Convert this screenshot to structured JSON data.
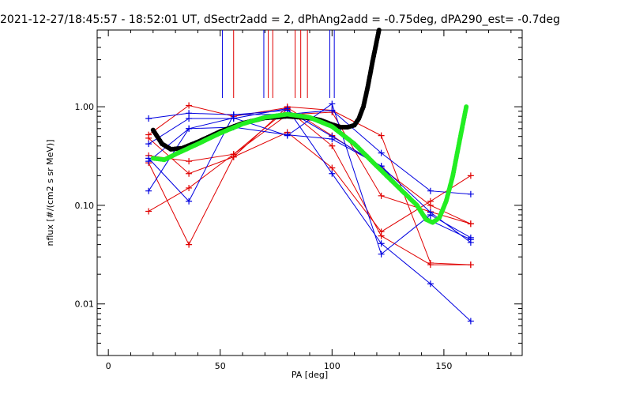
{
  "chart_data": {
    "type": "scatter",
    "title": "2021-12-27/18:45:57 - 18:52:01 UT, dSectr2add = 2, dPhAng2add = -0.75deg, dPA290_est=  -0.7deg",
    "xlabel": "PA [deg]",
    "ylabel": "nflux [#/(cm2 s sr MeV)]",
    "xlim": [
      -5,
      185
    ],
    "ylim": [
      0.003,
      6
    ],
    "yscale": "log",
    "x_ticks": [
      0,
      50,
      100,
      150
    ],
    "x_tick_labels": [
      "0",
      "50",
      "100",
      "150"
    ],
    "y_ticks": [
      0.01,
      0.1,
      1.0
    ],
    "y_tick_labels": [
      "0.01",
      "0.10",
      "1.00"
    ],
    "grid": false,
    "colors": {
      "red": "#e00000",
      "blue": "#0000e0",
      "black": "#000000",
      "green": "#22ee22"
    },
    "vertical_markers": [
      {
        "x": 51,
        "color": "#0000e0"
      },
      {
        "x": 56,
        "color": "#e00000"
      },
      {
        "x": 69.5,
        "color": "#0000e0"
      },
      {
        "x": 71.5,
        "color": "#e00000"
      },
      {
        "x": 73.5,
        "color": "#e00000"
      },
      {
        "x": 83.5,
        "color": "#e00000"
      },
      {
        "x": 86,
        "color": "#e00000"
      },
      {
        "x": 89,
        "color": "#e00000"
      },
      {
        "x": 99,
        "color": "#0000e0"
      },
      {
        "x": 101,
        "color": "#0000e0"
      }
    ],
    "series": [
      {
        "color": "#e00000",
        "x": [
          18,
          36,
          56,
          80,
          100,
          122,
          144,
          162
        ],
        "y": [
          0.087,
          0.15,
          0.33,
          0.83,
          0.88,
          0.125,
          0.086,
          0.065
        ]
      },
      {
        "color": "#e00000",
        "x": [
          18,
          36,
          56,
          80,
          100,
          122,
          144,
          162
        ],
        "y": [
          0.48,
          0.21,
          0.31,
          0.55,
          0.24,
          0.054,
          0.11,
          0.2
        ]
      },
      {
        "color": "#e00000",
        "x": [
          18,
          36,
          56,
          80,
          100,
          122,
          144,
          162
        ],
        "y": [
          0.32,
          0.28,
          0.33,
          0.94,
          0.4,
          0.049,
          0.025,
          0.025
        ]
      },
      {
        "color": "#e00000",
        "x": [
          18,
          36,
          56,
          80,
          100,
          122,
          144,
          162
        ],
        "y": [
          0.27,
          0.04,
          0.31,
          1.0,
          0.92,
          0.51,
          0.026,
          0.025
        ]
      },
      {
        "color": "#e00000",
        "x": [
          18,
          36,
          56,
          80,
          100,
          122,
          144,
          162
        ],
        "y": [
          0.52,
          1.03,
          0.8,
          0.98,
          0.51,
          0.24,
          0.1,
          0.065
        ]
      },
      {
        "color": "#0000e0",
        "x": [
          18,
          36,
          56,
          80,
          100,
          122,
          144,
          162
        ],
        "y": [
          0.76,
          0.86,
          0.83,
          0.92,
          0.5,
          0.25,
          0.085,
          0.042
        ]
      },
      {
        "color": "#0000e0",
        "x": [
          18,
          36,
          56,
          80,
          100,
          122,
          144,
          162
        ],
        "y": [
          0.42,
          0.76,
          0.76,
          0.96,
          0.21,
          0.041,
          0.016,
          0.0067
        ]
      },
      {
        "color": "#0000e0",
        "x": [
          18,
          36,
          56,
          80,
          100,
          122,
          144,
          162
        ],
        "y": [
          0.3,
          0.11,
          0.83,
          0.84,
          0.92,
          0.34,
          0.14,
          0.13
        ]
      },
      {
        "color": "#0000e0",
        "x": [
          18,
          36,
          56,
          80,
          100,
          122,
          144,
          162
        ],
        "y": [
          0.14,
          0.6,
          0.77,
          0.51,
          1.07,
          0.032,
          0.08,
          0.047
        ]
      },
      {
        "color": "#0000e0",
        "x": [
          18,
          36,
          56,
          80,
          100,
          122,
          144,
          162
        ],
        "y": [
          0.28,
          0.6,
          0.62,
          0.52,
          0.47,
          0.25,
          0.07,
          0.045
        ]
      }
    ],
    "fit_curves": [
      {
        "color": "#000000",
        "x": [
          20,
          24,
          28,
          33,
          40,
          50,
          60,
          70,
          80,
          90,
          95,
          100,
          104,
          107,
          110,
          112,
          114,
          116,
          118,
          121
        ],
        "y": [
          0.58,
          0.42,
          0.37,
          0.38,
          0.44,
          0.56,
          0.68,
          0.77,
          0.8,
          0.77,
          0.73,
          0.66,
          0.62,
          0.62,
          0.65,
          0.76,
          1.0,
          1.6,
          2.8,
          6.0
        ]
      },
      {
        "color": "#22ee22",
        "x": [
          20,
          25,
          30,
          40,
          50,
          60,
          70,
          80,
          90,
          100,
          110,
          120,
          130,
          138,
          142,
          145,
          148,
          151,
          154,
          157,
          160
        ],
        "y": [
          0.3,
          0.29,
          0.33,
          0.42,
          0.54,
          0.67,
          0.78,
          0.84,
          0.78,
          0.63,
          0.42,
          0.25,
          0.15,
          0.1,
          0.072,
          0.067,
          0.075,
          0.11,
          0.2,
          0.45,
          1.0
        ]
      }
    ]
  }
}
